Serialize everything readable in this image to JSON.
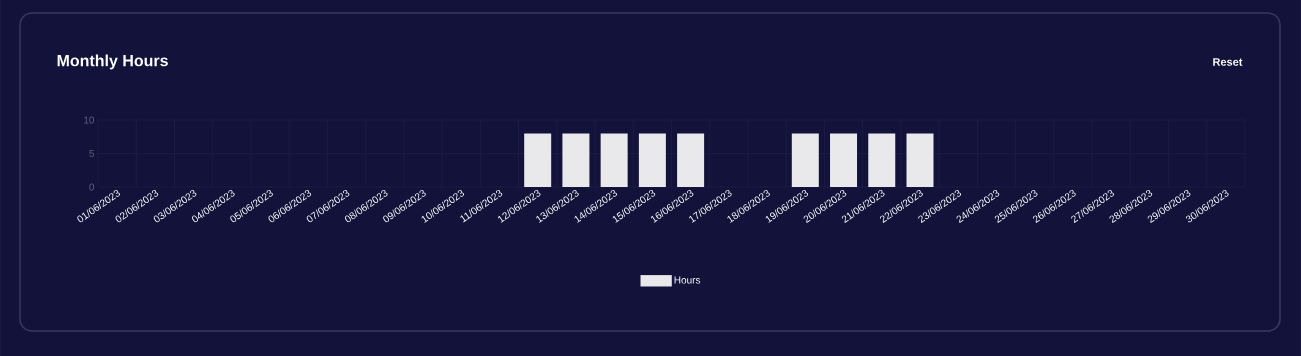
{
  "chart_data": {
    "type": "bar",
    "title": "Monthly Hours",
    "annotations": [
      "Reset"
    ],
    "categories": [
      "01/06/2023",
      "02/06/2023",
      "03/06/2023",
      "04/06/2023",
      "05/06/2023",
      "06/06/2023",
      "07/06/2023",
      "08/06/2023",
      "09/06/2023",
      "10/06/2023",
      "11/06/2023",
      "12/06/2023",
      "13/06/2023",
      "14/06/2023",
      "15/06/2023",
      "16/06/2023",
      "17/06/2023",
      "18/06/2023",
      "19/06/2023",
      "20/06/2023",
      "21/06/2023",
      "22/06/2023",
      "23/06/2023",
      "24/06/2023",
      "25/06/2023",
      "26/06/2023",
      "27/06/2023",
      "28/06/2023",
      "29/06/2023",
      "30/06/2023"
    ],
    "series": [
      {
        "name": "Hours",
        "color": "#e9e9ec",
        "values": [
          0,
          0,
          0,
          0,
          0,
          0,
          0,
          0,
          0,
          0,
          0,
          8,
          8,
          8,
          8,
          8,
          0,
          0,
          8,
          8,
          8,
          8,
          0,
          0,
          0,
          0,
          0,
          0,
          0,
          0
        ]
      }
    ],
    "ylim": [
      0,
      10
    ],
    "yticks": [
      0,
      5,
      10
    ],
    "grid": true,
    "legend": "bottom"
  }
}
